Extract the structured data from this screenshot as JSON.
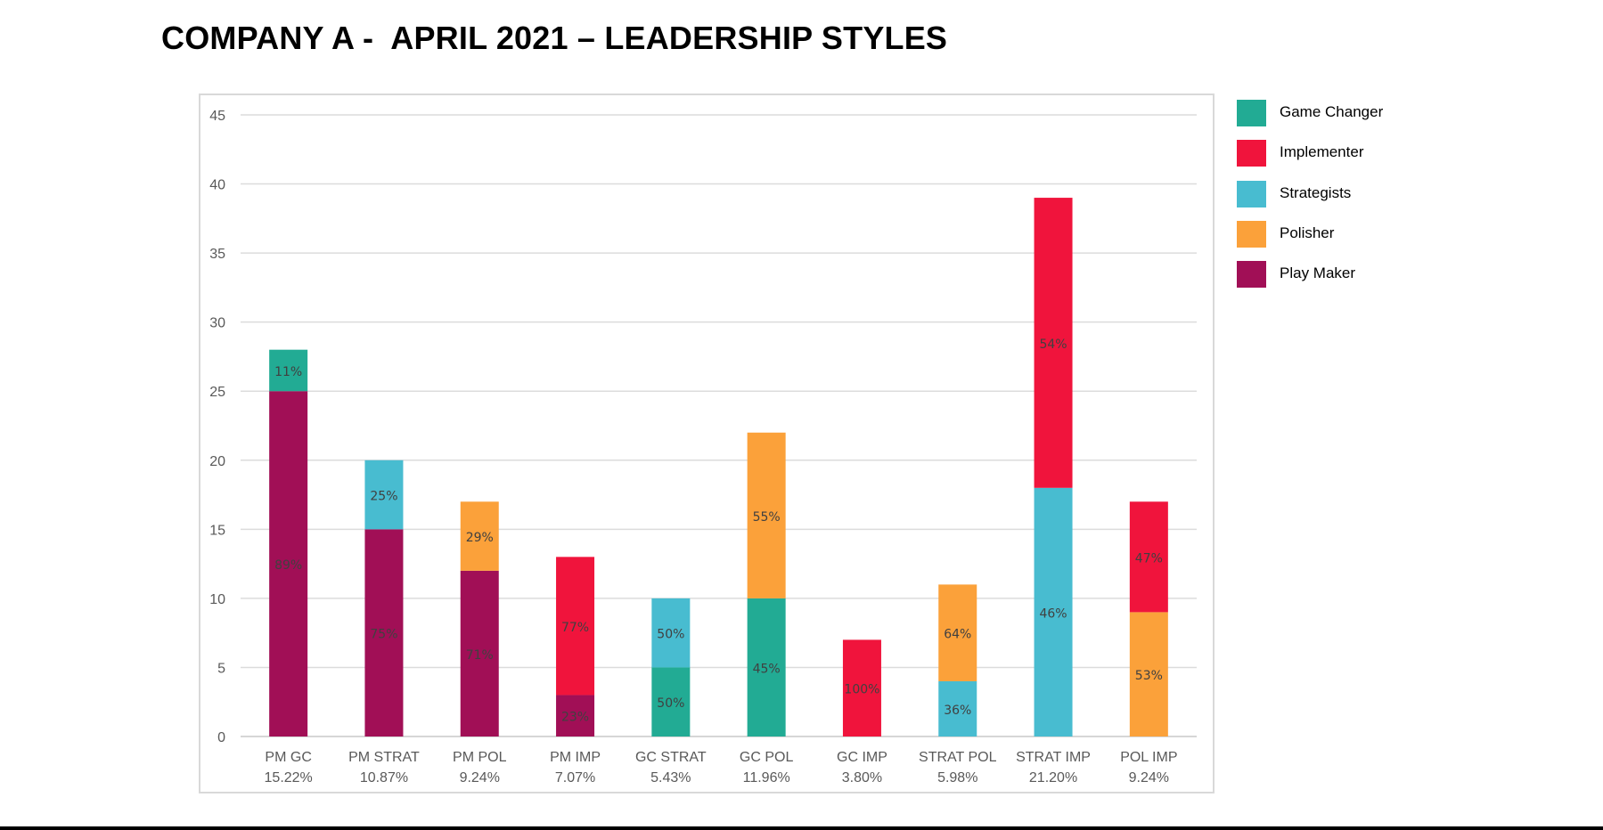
{
  "title": "COMPANY A -  APRIL 2021 – LEADERSHIP STYLES",
  "legend": [
    {
      "label": "Game Changer",
      "color": "#22ab94"
    },
    {
      "label": "Implementer",
      "color": "#f0143c"
    },
    {
      "label": "Strategists",
      "color": "#48bcd0"
    },
    {
      "label": "Polisher",
      "color": "#fba13a"
    },
    {
      "label": "Play Maker",
      "color": "#a10f56"
    }
  ],
  "chart_data": {
    "type": "bar",
    "stacked": true,
    "ylim": [
      0,
      45
    ],
    "yticks": [
      "0",
      "5",
      "10",
      "15",
      "20",
      "25",
      "30",
      "35",
      "40",
      "45"
    ],
    "grid": true,
    "legend_position": "right",
    "categories": [
      {
        "label": "PM GC",
        "sublabel": "15.22%"
      },
      {
        "label": "PM STRAT",
        "sublabel": "10.87%"
      },
      {
        "label": "PM POL",
        "sublabel": "9.24%"
      },
      {
        "label": "PM IMP",
        "sublabel": "7.07%"
      },
      {
        "label": "GC STRAT",
        "sublabel": "5.43%"
      },
      {
        "label": "GC POL",
        "sublabel": "11.96%"
      },
      {
        "label": "GC IMP",
        "sublabel": "3.80%"
      },
      {
        "label": "STRAT POL",
        "sublabel": "5.98%"
      },
      {
        "label": "STRAT IMP",
        "sublabel": "21.20%"
      },
      {
        "label": "POL IMP",
        "sublabel": "9.24%"
      }
    ],
    "series": [
      {
        "name": "Play Maker",
        "color": "#a10f56",
        "values": [
          25,
          15,
          12,
          3,
          0,
          0,
          0,
          0,
          0,
          0
        ],
        "labels": [
          "89%",
          "75%",
          "71%",
          "23%",
          "",
          "",
          "",
          "",
          "",
          ""
        ]
      },
      {
        "name": "Game Changer",
        "color": "#22ab94",
        "values": [
          3,
          0,
          0,
          0,
          5,
          10,
          0,
          0,
          0,
          0
        ],
        "labels": [
          "11%",
          "",
          "",
          "",
          "50%",
          "45%",
          "",
          "",
          "",
          ""
        ]
      },
      {
        "name": "Strategists",
        "color": "#48bcd0",
        "values": [
          0,
          5,
          0,
          0,
          5,
          0,
          0,
          4,
          18,
          0
        ],
        "labels": [
          "",
          "25%",
          "",
          "",
          "50%",
          "",
          "",
          "36%",
          "46%",
          ""
        ]
      },
      {
        "name": "Polisher",
        "color": "#fba13a",
        "values": [
          0,
          0,
          5,
          0,
          0,
          12,
          0,
          7,
          0,
          9
        ],
        "labels": [
          "",
          "",
          "29%",
          "",
          "",
          "55%",
          "",
          "64%",
          "",
          "53%"
        ]
      },
      {
        "name": "Implementer",
        "color": "#f0143c",
        "values": [
          0,
          0,
          0,
          10,
          0,
          0,
          7,
          0,
          21,
          8
        ],
        "labels": [
          "",
          "",
          "",
          "77%",
          "",
          "",
          "100%",
          "",
          "54%",
          "47%"
        ]
      }
    ]
  }
}
